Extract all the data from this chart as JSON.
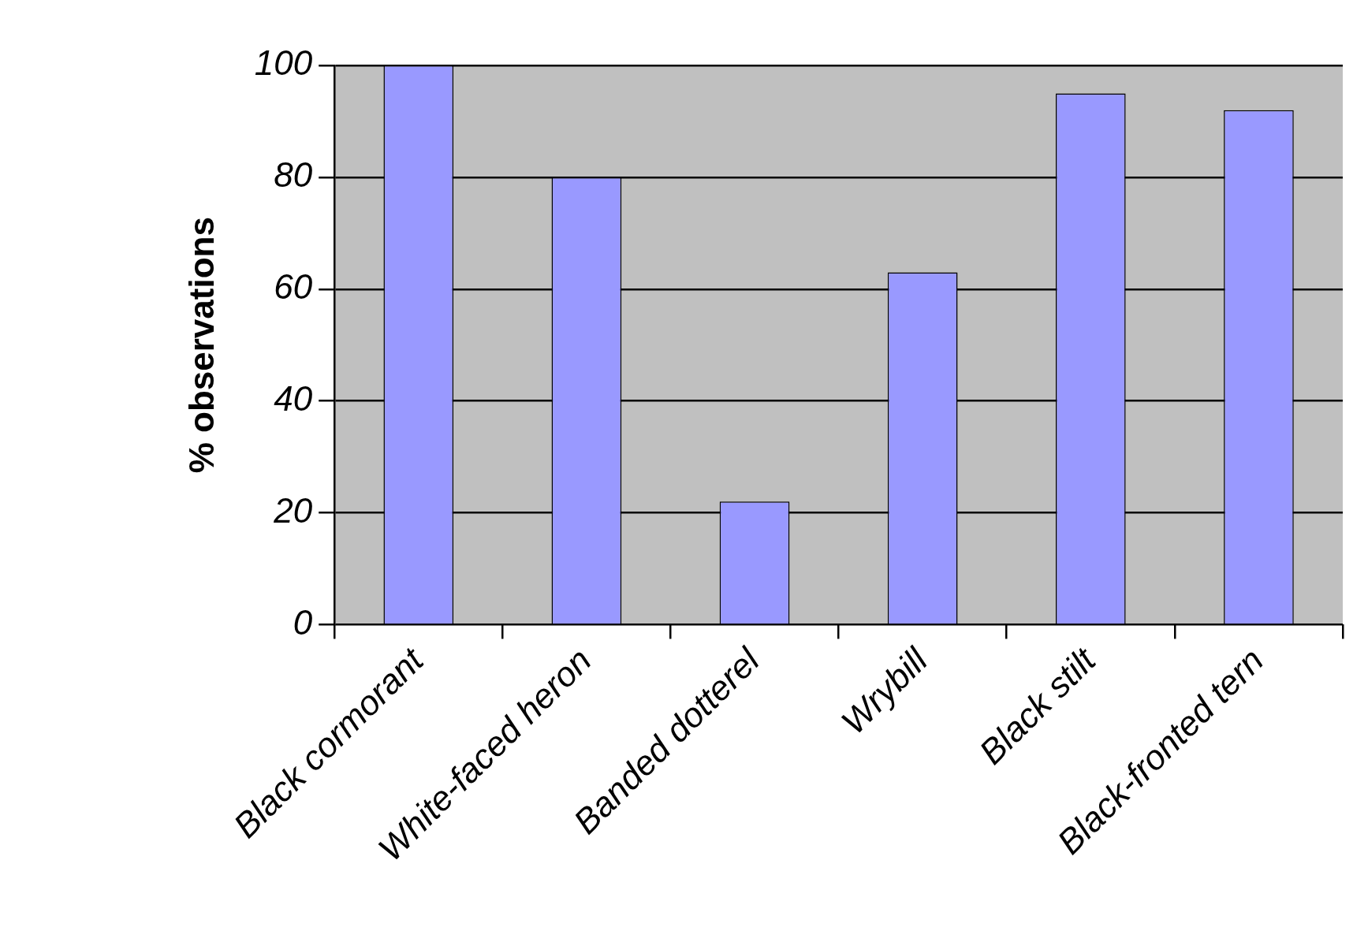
{
  "chart_data": {
    "type": "bar",
    "ylabel": "% observations",
    "categories": [
      "Black cormorant",
      "White-faced heron",
      "Banded dotterel",
      "Wrybill",
      "Black stilt",
      "Black-fronted tern"
    ],
    "values": [
      100,
      80,
      22,
      63,
      95,
      92
    ],
    "color": "#9999ff",
    "ylim": [
      0,
      100
    ],
    "yticks": [
      0,
      20,
      40,
      60,
      80,
      100
    ],
    "grid": "y",
    "legend": false
  }
}
